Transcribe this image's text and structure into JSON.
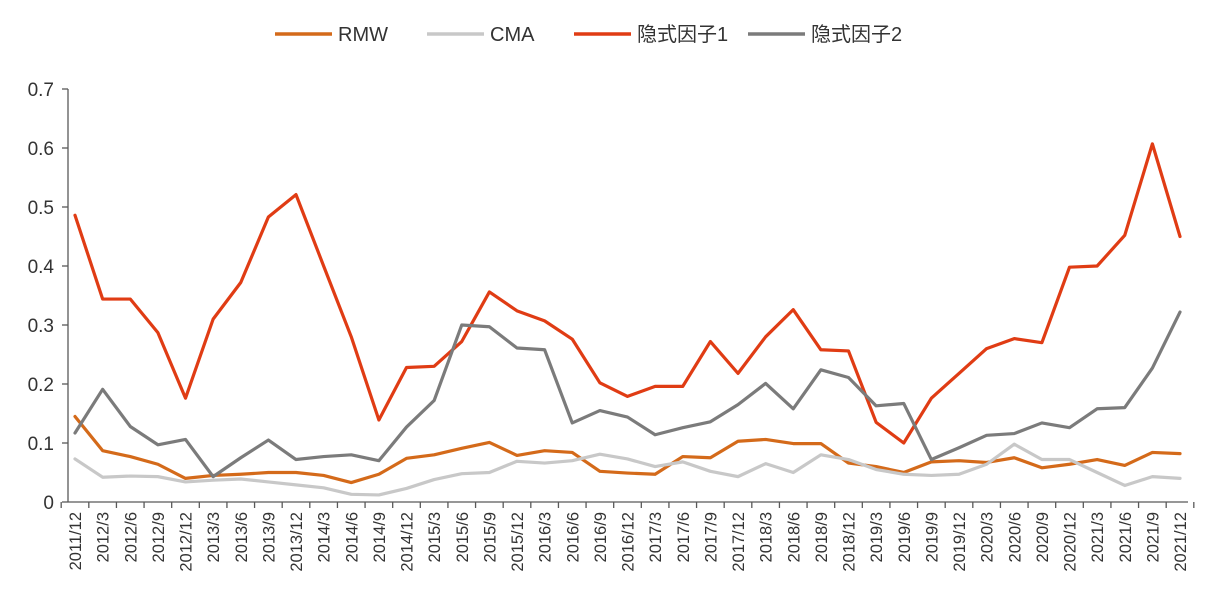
{
  "chart_data": {
    "type": "line",
    "title": "",
    "xlabel": "",
    "ylabel": "",
    "ylim": [
      0,
      0.7
    ],
    "yticks": [
      "0",
      "0.1",
      "0.2",
      "0.3",
      "0.4",
      "0.5",
      "0.6",
      "0.7"
    ],
    "grid": false,
    "legend_position": "top",
    "categories": [
      "2011/12",
      "2012/3",
      "2012/6",
      "2012/9",
      "2012/12",
      "2013/3",
      "2013/6",
      "2013/9",
      "2013/12",
      "2014/3",
      "2014/6",
      "2014/9",
      "2014/12",
      "2015/3",
      "2015/6",
      "2015/9",
      "2015/12",
      "2016/3",
      "2016/6",
      "2016/9",
      "2016/12",
      "2017/3",
      "2017/6",
      "2017/9",
      "2017/12",
      "2018/3",
      "2018/6",
      "2018/9",
      "2018/12",
      "2019/3",
      "2019/6",
      "2019/9",
      "2019/12",
      "2020/3",
      "2020/6",
      "2020/9",
      "2020/12",
      "2021/3",
      "2021/6",
      "2021/9",
      "2021/12"
    ],
    "series": [
      {
        "name": "RMW",
        "color": "#d46a1a",
        "values": [
          0.145,
          0.087,
          0.077,
          0.064,
          0.04,
          0.045,
          0.047,
          0.05,
          0.05,
          0.045,
          0.033,
          0.047,
          0.074,
          0.08,
          0.091,
          0.101,
          0.079,
          0.087,
          0.084,
          0.052,
          0.049,
          0.047,
          0.077,
          0.075,
          0.103,
          0.106,
          0.099,
          0.099,
          0.066,
          0.06,
          0.05,
          0.068,
          0.07,
          0.067,
          0.075,
          0.058,
          0.064,
          0.072,
          0.062,
          0.084,
          0.082
        ]
      },
      {
        "name": "CMA",
        "color": "#c8c8c8",
        "values": [
          0.073,
          0.042,
          0.044,
          0.043,
          0.034,
          0.037,
          0.039,
          0.034,
          0.029,
          0.024,
          0.013,
          0.012,
          0.023,
          0.038,
          0.048,
          0.05,
          0.069,
          0.066,
          0.07,
          0.081,
          0.073,
          0.06,
          0.068,
          0.052,
          0.043,
          0.065,
          0.05,
          0.08,
          0.072,
          0.055,
          0.047,
          0.045,
          0.047,
          0.064,
          0.098,
          0.072,
          0.072,
          0.05,
          0.028,
          0.043,
          0.04
        ]
      },
      {
        "name": "隐式因子1",
        "color": "#e03c14",
        "values": [
          0.486,
          0.344,
          0.344,
          0.287,
          0.176,
          0.31,
          0.372,
          0.483,
          0.521,
          0.4,
          0.28,
          0.139,
          0.228,
          0.23,
          0.272,
          0.356,
          0.324,
          0.307,
          0.276,
          0.202,
          0.179,
          0.196,
          0.196,
          0.272,
          0.218,
          0.28,
          0.326,
          0.258,
          0.256,
          0.135,
          0.1,
          0.176,
          0.218,
          0.26,
          0.277,
          0.27,
          0.398,
          0.4,
          0.452,
          0.607,
          0.45
        ]
      },
      {
        "name": "隐式因子2",
        "color": "#7b7b7b",
        "values": [
          0.117,
          0.191,
          0.128,
          0.097,
          0.106,
          0.043,
          0.075,
          0.105,
          0.072,
          0.077,
          0.08,
          0.07,
          0.127,
          0.172,
          0.3,
          0.297,
          0.261,
          0.258,
          0.134,
          0.155,
          0.144,
          0.114,
          0.126,
          0.136,
          0.165,
          0.201,
          0.158,
          0.224,
          0.211,
          0.163,
          0.167,
          0.072,
          0.092,
          0.113,
          0.116,
          0.134,
          0.126,
          0.158,
          0.16,
          0.227,
          0.322
        ]
      }
    ]
  }
}
